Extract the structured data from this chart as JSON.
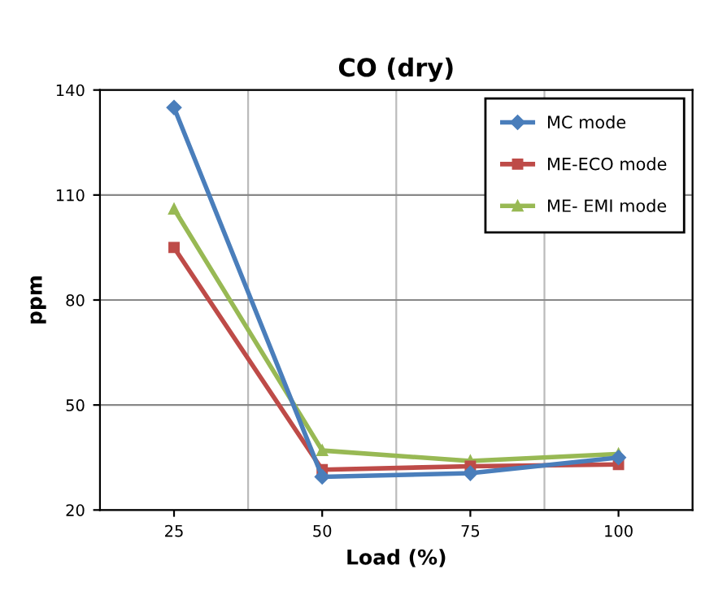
{
  "chart_data": {
    "type": "line",
    "title": "CO (dry)",
    "xlabel": "Load (%)",
    "ylabel": "ppm",
    "categories": [
      "25",
      "50",
      "75",
      "100"
    ],
    "series": [
      {
        "name": "MC mode",
        "color": "#4a7ebb",
        "values": [
          135,
          29.5,
          30.5,
          35
        ],
        "marker": "diamond"
      },
      {
        "name": "ME-ECO mode",
        "color": "#be4b48",
        "values": [
          95,
          31.5,
          32.5,
          33
        ],
        "marker": "square"
      },
      {
        "name": "ME- EMI mode",
        "color": "#98b954",
        "values": [
          106,
          37,
          34,
          36
        ],
        "marker": "triangle"
      }
    ],
    "ylim": [
      20,
      140
    ],
    "yticks": [
      20,
      50,
      80,
      110,
      140
    ],
    "grid": true,
    "legend": "top right"
  }
}
